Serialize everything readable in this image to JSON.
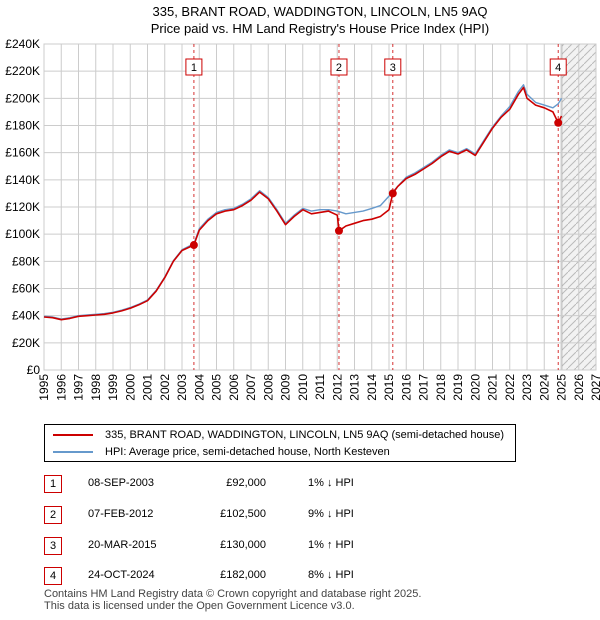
{
  "chart_data": {
    "type": "line",
    "title": "335, BRANT ROAD, WADDINGTON, LINCOLN, LN5 9AQ",
    "subtitle": "Price paid vs. HM Land Registry's House Price Index (HPI)",
    "xlabel": "",
    "ylabel": "",
    "xlim": [
      1995,
      2027
    ],
    "ylim": [
      0,
      240000
    ],
    "x_ticks": [
      "1995",
      "1996",
      "1997",
      "1998",
      "1999",
      "2000",
      "2001",
      "2002",
      "2003",
      "2004",
      "2005",
      "2006",
      "2007",
      "2008",
      "2009",
      "2010",
      "2011",
      "2012",
      "2013",
      "2014",
      "2015",
      "2016",
      "2017",
      "2018",
      "2019",
      "2020",
      "2021",
      "2022",
      "2023",
      "2024",
      "2025",
      "2026",
      "2027"
    ],
    "y_ticks": [
      {
        "value": 0,
        "label": "£0"
      },
      {
        "value": 20000,
        "label": "£20K"
      },
      {
        "value": 40000,
        "label": "£40K"
      },
      {
        "value": 60000,
        "label": "£60K"
      },
      {
        "value": 80000,
        "label": "£80K"
      },
      {
        "value": 100000,
        "label": "£100K"
      },
      {
        "value": 120000,
        "label": "£120K"
      },
      {
        "value": 140000,
        "label": "£140K"
      },
      {
        "value": 160000,
        "label": "£160K"
      },
      {
        "value": 180000,
        "label": "£180K"
      },
      {
        "value": 200000,
        "label": "£200K"
      },
      {
        "value": 220000,
        "label": "£220K"
      },
      {
        "value": 240000,
        "label": "£240K"
      }
    ],
    "grid": true,
    "forecast_start": 2025.0,
    "series": [
      {
        "name": "335, BRANT ROAD, WADDINGTON, LINCOLN, LN5 9AQ (semi-detached house)",
        "color": "#cc0000",
        "x": [
          1995.0,
          1995.5,
          1996.0,
          1996.5,
          1997.0,
          1997.5,
          1998.0,
          1998.5,
          1999.0,
          1999.5,
          2000.0,
          2000.5,
          2001.0,
          2001.5,
          2002.0,
          2002.5,
          2003.0,
          2003.69,
          2004.0,
          2004.5,
          2005.0,
          2005.5,
          2006.0,
          2006.5,
          2007.0,
          2007.5,
          2008.0,
          2008.5,
          2009.0,
          2009.5,
          2010.0,
          2010.5,
          2011.0,
          2011.5,
          2012.0,
          2012.1,
          2012.5,
          2013.0,
          2013.5,
          2014.0,
          2014.5,
          2015.0,
          2015.22,
          2015.5,
          2016.0,
          2016.5,
          2017.0,
          2017.5,
          2018.0,
          2018.5,
          2019.0,
          2019.5,
          2020.0,
          2020.5,
          2021.0,
          2021.5,
          2022.0,
          2022.5,
          2022.8,
          2023.0,
          2023.5,
          2024.0,
          2024.5,
          2024.81,
          2025.0
        ],
        "y": [
          39000,
          38500,
          37000,
          38000,
          39500,
          40000,
          40500,
          41000,
          42000,
          43500,
          45500,
          48000,
          51000,
          58000,
          68000,
          80000,
          88000,
          92000,
          103000,
          110000,
          115000,
          117000,
          118000,
          121000,
          125000,
          131000,
          126000,
          117000,
          107000,
          113000,
          118000,
          115000,
          116000,
          117000,
          114000,
          102500,
          106000,
          108000,
          110000,
          111000,
          113000,
          118000,
          130000,
          135000,
          141000,
          144000,
          148000,
          152000,
          157000,
          161000,
          159000,
          162000,
          158000,
          168000,
          178000,
          186000,
          192000,
          203000,
          208000,
          200000,
          195000,
          193000,
          190000,
          182000,
          187000
        ]
      },
      {
        "name": "HPI: Average price, semi-detached house, North Kesteven",
        "color": "#6699cc",
        "x": [
          1995.0,
          1995.5,
          1996.0,
          1996.5,
          1997.0,
          1997.5,
          1998.0,
          1998.5,
          1999.0,
          1999.5,
          2000.0,
          2000.5,
          2001.0,
          2001.5,
          2002.0,
          2002.5,
          2003.0,
          2003.69,
          2004.0,
          2004.5,
          2005.0,
          2005.5,
          2006.0,
          2006.5,
          2007.0,
          2007.5,
          2008.0,
          2008.5,
          2009.0,
          2009.5,
          2010.0,
          2010.5,
          2011.0,
          2011.5,
          2012.0,
          2012.5,
          2013.0,
          2013.5,
          2014.0,
          2014.5,
          2015.0,
          2015.5,
          2016.0,
          2016.5,
          2017.0,
          2017.5,
          2018.0,
          2018.5,
          2019.0,
          2019.5,
          2020.0,
          2020.5,
          2021.0,
          2021.5,
          2022.0,
          2022.5,
          2022.8,
          2023.0,
          2023.5,
          2024.0,
          2024.5,
          2024.81,
          2025.0
        ],
        "y": [
          39500,
          39000,
          37500,
          38500,
          40000,
          40500,
          41000,
          41500,
          42500,
          44000,
          46000,
          48500,
          51500,
          58500,
          68500,
          80500,
          88500,
          93000,
          104000,
          111000,
          116000,
          118000,
          119000,
          122000,
          126000,
          132000,
          127000,
          118000,
          108000,
          114000,
          119000,
          117000,
          118000,
          118000,
          117000,
          115000,
          116000,
          117000,
          119000,
          121000,
          128000,
          135000,
          142000,
          145000,
          149000,
          153000,
          158000,
          162000,
          160000,
          163000,
          159000,
          169000,
          179000,
          187000,
          194000,
          205000,
          210000,
          203000,
          197000,
          195000,
          193000,
          196000,
          200000
        ]
      }
    ],
    "transactions": [
      {
        "label": "1",
        "date": "08-SEP-2003",
        "price": "£92,000",
        "hpi": "1% ↓ HPI",
        "x": 2003.69,
        "y": 92000
      },
      {
        "label": "2",
        "date": "07-FEB-2012",
        "price": "£102,500",
        "hpi": "9% ↓ HPI",
        "x": 2012.1,
        "y": 102500
      },
      {
        "label": "3",
        "date": "20-MAR-2015",
        "price": "£130,000",
        "hpi": "1% ↑ HPI",
        "x": 2015.22,
        "y": 130000
      },
      {
        "label": "4",
        "date": "24-OCT-2024",
        "price": "£182,000",
        "hpi": "8% ↓ HPI",
        "x": 2024.81,
        "y": 182000
      }
    ]
  },
  "legend": {
    "property_label": "335, BRANT ROAD, WADDINGTON, LINCOLN, LN5 9AQ (semi-detached house)",
    "hpi_label": "HPI: Average price, semi-detached house, North Kesteven"
  },
  "footer": {
    "line1": "Contains HM Land Registry data © Crown copyright and database right 2025.",
    "line2": "This data is licensed under the Open Government Licence v3.0."
  },
  "colors": {
    "property": "#cc0000",
    "hpi": "#6699cc"
  }
}
